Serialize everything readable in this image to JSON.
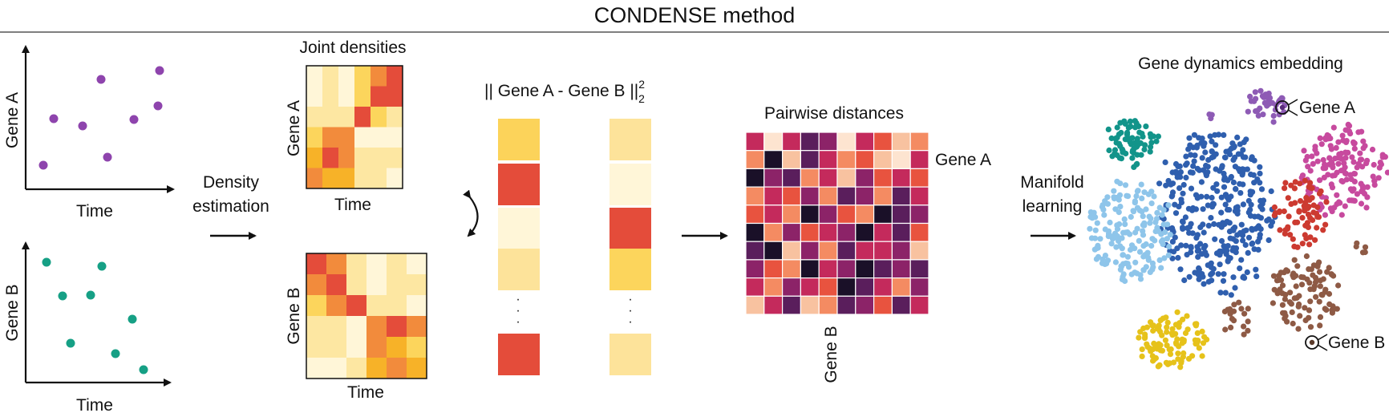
{
  "title": "CONDENSE method",
  "panel_scatter": {
    "gene_a_label": "Gene A",
    "gene_b_label": "Gene B",
    "time_label_top": "Time",
    "time_label_bottom": "Time",
    "gene_a_color": "#8e44ad",
    "gene_b_color": "#16a085"
  },
  "step_density": {
    "line1": "Density",
    "line2": "estimation"
  },
  "panel_density": {
    "title": "Joint densities",
    "gene_a_label": "Gene A",
    "gene_b_label": "Gene B",
    "time_label_top": "Time",
    "time_label_bottom": "Time",
    "palette": [
      "#fff6d8",
      "#fde7a2",
      "#fcd55c",
      "#f7b228",
      "#f28b3c",
      "#e44c3a"
    ],
    "matrix_a": [
      [
        0,
        1,
        0,
        2,
        4,
        5
      ],
      [
        0,
        1,
        0,
        2,
        5,
        5
      ],
      [
        1,
        1,
        1,
        5,
        2,
        1
      ],
      [
        2,
        4,
        4,
        0,
        0,
        0
      ],
      [
        3,
        5,
        4,
        1,
        1,
        1
      ],
      [
        4,
        3,
        3,
        1,
        1,
        0
      ]
    ],
    "matrix_b": [
      [
        5,
        4,
        1,
        0,
        1,
        0
      ],
      [
        4,
        5,
        1,
        0,
        1,
        1
      ],
      [
        2,
        4,
        5,
        1,
        1,
        0
      ],
      [
        1,
        1,
        0,
        4,
        5,
        4
      ],
      [
        1,
        1,
        0,
        4,
        3,
        2
      ],
      [
        0,
        0,
        1,
        3,
        4,
        3
      ]
    ]
  },
  "distance_label": {
    "text": "|| Gene A - Gene B ||",
    "superscript": "2",
    "subscript": "2"
  },
  "vectors": {
    "a_colors": [
      "#fcd35a",
      "#e44c3a",
      "#fff6d8",
      "#fde39a",
      "#e44c3a"
    ],
    "b_colors": [
      "#fde39a",
      "#fff6d8",
      "#e44c3a",
      "#fcd55c",
      "#fde39a"
    ],
    "ellipsis": "·\n·\n·"
  },
  "panel_pairwise": {
    "title": "Pairwise distances",
    "gene_a_label": "Gene A",
    "gene_b_label": "Gene B",
    "palette": [
      "#1a1028",
      "#5a1e5c",
      "#8c2368",
      "#c42a5c",
      "#e8533f",
      "#f48b62",
      "#f8c2a0",
      "#fde4d0"
    ],
    "matrix": [
      [
        3,
        7,
        3,
        1,
        2,
        7,
        3,
        4,
        6,
        5
      ],
      [
        5,
        0,
        6,
        1,
        3,
        5,
        4,
        6,
        7,
        3
      ],
      [
        0,
        2,
        1,
        5,
        3,
        6,
        2,
        4,
        3,
        4
      ],
      [
        5,
        3,
        4,
        2,
        5,
        1,
        2,
        5,
        1,
        3
      ],
      [
        4,
        3,
        5,
        0,
        2,
        4,
        5,
        0,
        1,
        2
      ],
      [
        0,
        5,
        2,
        4,
        3,
        2,
        0,
        3,
        1,
        4
      ],
      [
        1,
        0,
        6,
        2,
        5,
        1,
        3,
        3,
        2,
        6
      ],
      [
        2,
        4,
        5,
        0,
        3,
        2,
        0,
        1,
        2,
        1
      ],
      [
        3,
        5,
        2,
        3,
        4,
        0,
        1,
        3,
        5,
        2
      ],
      [
        6,
        3,
        1,
        6,
        5,
        1,
        2,
        4,
        1,
        3
      ]
    ]
  },
  "step_manifold": {
    "line1": "Manifold",
    "line2": "learning"
  },
  "panel_embedding": {
    "title": "Gene dynamics embedding",
    "gene_a_label": "Gene A",
    "gene_b_label": "Gene B",
    "clusters": [
      {
        "name": "purple",
        "color": "#8e5bb5"
      },
      {
        "name": "teal",
        "color": "#12948a"
      },
      {
        "name": "blue",
        "color": "#2f5fae"
      },
      {
        "name": "light-blue",
        "color": "#8ec5ea"
      },
      {
        "name": "magenta",
        "color": "#c74a9e"
      },
      {
        "name": "red",
        "color": "#cc3a30"
      },
      {
        "name": "brown",
        "color": "#8e5a45"
      },
      {
        "name": "yellow",
        "color": "#e6c21a"
      }
    ]
  }
}
